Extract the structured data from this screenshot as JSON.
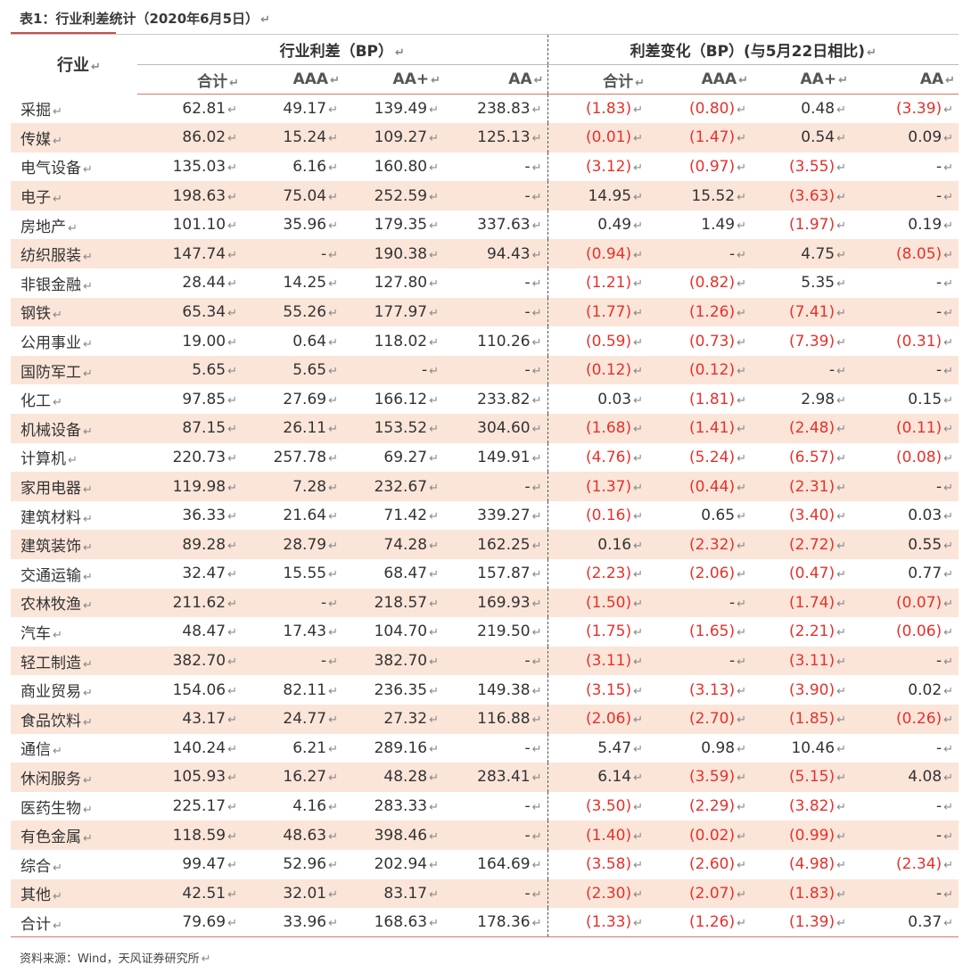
{
  "caption": "表1：行业利差统计（2020年6月5日）",
  "mark": "↵",
  "header": {
    "industry": "行业",
    "group1": "行业利差（BP）",
    "group2": "利差变化（BP）(与5月22日相比)",
    "cols": [
      "合计",
      "AAA",
      "AA+",
      "AA"
    ]
  },
  "rows": [
    {
      "name": "采掘",
      "spread": [
        "62.81",
        "49.17",
        "139.49",
        "238.83"
      ],
      "change": [
        "(1.83)",
        "(0.80)",
        "0.48",
        "(3.39)"
      ]
    },
    {
      "name": "传媒",
      "spread": [
        "86.02",
        "15.24",
        "109.27",
        "125.13"
      ],
      "change": [
        "(0.01)",
        "(1.47)",
        "0.54",
        "0.09"
      ]
    },
    {
      "name": "电气设备",
      "spread": [
        "135.03",
        "6.16",
        "160.80",
        "-"
      ],
      "change": [
        "(3.12)",
        "(0.97)",
        "(3.55)",
        "-"
      ]
    },
    {
      "name": "电子",
      "spread": [
        "198.63",
        "75.04",
        "252.59",
        "-"
      ],
      "change": [
        "14.95",
        "15.52",
        "(3.63)",
        "-"
      ]
    },
    {
      "name": "房地产",
      "spread": [
        "101.10",
        "35.96",
        "179.35",
        "337.63"
      ],
      "change": [
        "0.49",
        "1.49",
        "(1.97)",
        "0.19"
      ]
    },
    {
      "name": "纺织服装",
      "spread": [
        "147.74",
        "-",
        "190.38",
        "94.43"
      ],
      "change": [
        "(0.94)",
        "-",
        "4.75",
        "(8.05)"
      ]
    },
    {
      "name": "非银金融",
      "spread": [
        "28.44",
        "14.25",
        "127.80",
        "-"
      ],
      "change": [
        "(1.21)",
        "(0.82)",
        "5.35",
        "-"
      ]
    },
    {
      "name": "钢铁",
      "spread": [
        "65.34",
        "55.26",
        "177.97",
        "-"
      ],
      "change": [
        "(1.77)",
        "(1.26)",
        "(7.41)",
        "-"
      ]
    },
    {
      "name": "公用事业",
      "spread": [
        "19.00",
        "0.64",
        "118.02",
        "110.26"
      ],
      "change": [
        "(0.59)",
        "(0.73)",
        "(7.39)",
        "(0.31)"
      ]
    },
    {
      "name": "国防军工",
      "spread": [
        "5.65",
        "5.65",
        "-",
        "-"
      ],
      "change": [
        "(0.12)",
        "(0.12)",
        "-",
        "-"
      ]
    },
    {
      "name": "化工",
      "spread": [
        "97.85",
        "27.69",
        "166.12",
        "233.82"
      ],
      "change": [
        "0.03",
        "(1.81)",
        "2.98",
        "0.15"
      ]
    },
    {
      "name": "机械设备",
      "spread": [
        "87.15",
        "26.11",
        "153.52",
        "304.60"
      ],
      "change": [
        "(1.68)",
        "(1.41)",
        "(2.48)",
        "(0.11)"
      ]
    },
    {
      "name": "计算机",
      "spread": [
        "220.73",
        "257.78",
        "69.27",
        "149.91"
      ],
      "change": [
        "(4.76)",
        "(5.24)",
        "(6.57)",
        "(0.08)"
      ]
    },
    {
      "name": "家用电器",
      "spread": [
        "119.98",
        "7.28",
        "232.67",
        "-"
      ],
      "change": [
        "(1.37)",
        "(0.44)",
        "(2.31)",
        "-"
      ]
    },
    {
      "name": "建筑材料",
      "spread": [
        "36.33",
        "21.64",
        "71.42",
        "339.27"
      ],
      "change": [
        "(0.16)",
        "0.65",
        "(3.40)",
        "0.03"
      ]
    },
    {
      "name": "建筑装饰",
      "spread": [
        "89.28",
        "28.79",
        "74.28",
        "162.25"
      ],
      "change": [
        "0.16",
        "(2.32)",
        "(2.72)",
        "0.55"
      ]
    },
    {
      "name": "交通运输",
      "spread": [
        "32.47",
        "15.55",
        "68.47",
        "157.87"
      ],
      "change": [
        "(2.23)",
        "(2.06)",
        "(0.47)",
        "0.77"
      ]
    },
    {
      "name": "农林牧渔",
      "spread": [
        "211.62",
        "-",
        "218.57",
        "169.93"
      ],
      "change": [
        "(1.50)",
        "-",
        "(1.74)",
        "(0.07)"
      ]
    },
    {
      "name": "汽车",
      "spread": [
        "48.47",
        "17.43",
        "104.70",
        "219.50"
      ],
      "change": [
        "(1.75)",
        "(1.65)",
        "(2.21)",
        "(0.06)"
      ]
    },
    {
      "name": "轻工制造",
      "spread": [
        "382.70",
        "-",
        "382.70",
        "-"
      ],
      "change": [
        "(3.11)",
        "-",
        "(3.11)",
        "-"
      ]
    },
    {
      "name": "商业贸易",
      "spread": [
        "154.06",
        "82.11",
        "236.35",
        "149.38"
      ],
      "change": [
        "(3.15)",
        "(3.13)",
        "(3.90)",
        "0.02"
      ]
    },
    {
      "name": "食品饮料",
      "spread": [
        "43.17",
        "24.77",
        "27.32",
        "116.88"
      ],
      "change": [
        "(2.06)",
        "(2.70)",
        "(1.85)",
        "(0.26)"
      ]
    },
    {
      "name": "通信",
      "spread": [
        "140.24",
        "6.21",
        "289.16",
        "-"
      ],
      "change": [
        "5.47",
        "0.98",
        "10.46",
        "-"
      ]
    },
    {
      "name": "休闲服务",
      "spread": [
        "105.93",
        "16.27",
        "48.28",
        "283.41"
      ],
      "change": [
        "6.14",
        "(3.59)",
        "(5.15)",
        "4.08"
      ]
    },
    {
      "name": "医药生物",
      "spread": [
        "225.17",
        "4.16",
        "283.33",
        "-"
      ],
      "change": [
        "(3.50)",
        "(2.29)",
        "(3.82)",
        "-"
      ]
    },
    {
      "name": "有色金属",
      "spread": [
        "118.59",
        "48.63",
        "398.46",
        "-"
      ],
      "change": [
        "(1.40)",
        "(0.02)",
        "(0.99)",
        "-"
      ]
    },
    {
      "name": "综合",
      "spread": [
        "99.47",
        "52.96",
        "202.94",
        "164.69"
      ],
      "change": [
        "(3.58)",
        "(2.60)",
        "(4.98)",
        "(2.34)"
      ]
    },
    {
      "name": "其他",
      "spread": [
        "42.51",
        "32.01",
        "83.17",
        "-"
      ],
      "change": [
        "(2.30)",
        "(2.07)",
        "(1.83)",
        "-"
      ]
    },
    {
      "name": "合计",
      "spread": [
        "79.69",
        "33.96",
        "168.63",
        "178.36"
      ],
      "change": [
        "(1.33)",
        "(1.26)",
        "(1.39)",
        "0.37"
      ]
    }
  ],
  "source": "资料来源：Wind，天风证券研究所",
  "colors": {
    "accent_rule": "#c0504d",
    "row_shade": "#fbe5d9",
    "negative": "#e8302a"
  }
}
